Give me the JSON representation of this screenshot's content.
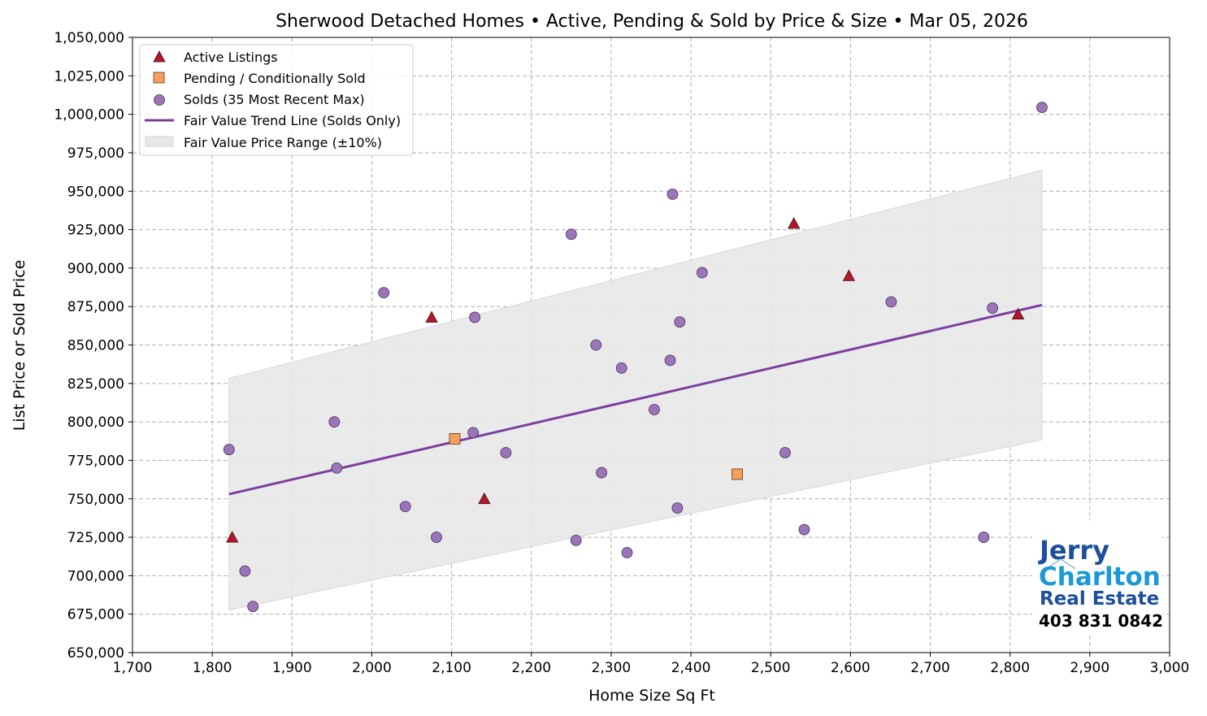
{
  "chart_data": {
    "type": "scatter",
    "title": "Sherwood Detached Homes • Active, Pending & Sold by Price & Size • Mar 05, 2026",
    "xlabel": "Home Size Sq Ft",
    "ylabel": "List Price or Sold Price",
    "xlim": [
      1700,
      3000
    ],
    "ylim": [
      650000,
      1050000
    ],
    "xticks": [
      1700,
      1800,
      1900,
      2000,
      2100,
      2200,
      2300,
      2400,
      2500,
      2600,
      2700,
      2800,
      2900,
      3000
    ],
    "yticks": [
      650000,
      675000,
      700000,
      725000,
      750000,
      775000,
      800000,
      825000,
      850000,
      875000,
      900000,
      925000,
      950000,
      975000,
      1000000,
      1025000,
      1050000
    ],
    "grid": true,
    "legend_placement": "top-left",
    "series": [
      {
        "name": "Active Listings",
        "marker": "triangle",
        "color": "#b2182b",
        "points": [
          [
            1825,
            725000
          ],
          [
            2075,
            868000
          ],
          [
            2141,
            750000
          ],
          [
            2529,
            929000
          ],
          [
            2598,
            895000
          ],
          [
            2810,
            870000
          ]
        ]
      },
      {
        "name": "Pending / Conditionally Sold",
        "marker": "square",
        "color": "#f4a05a",
        "points": [
          [
            2104,
            789000
          ],
          [
            2458,
            766000
          ]
        ]
      },
      {
        "name": "Solds (35 Most Recent Max)",
        "marker": "circle",
        "color": "#9a76b8",
        "points": [
          [
            1821,
            782000
          ],
          [
            1841,
            703000
          ],
          [
            1851,
            680000
          ],
          [
            1953,
            800000
          ],
          [
            1956,
            770000
          ],
          [
            2015,
            884000
          ],
          [
            2042,
            745000
          ],
          [
            2081,
            725000
          ],
          [
            2127,
            793000
          ],
          [
            2129,
            868000
          ],
          [
            2168,
            780000
          ],
          [
            2250,
            922000
          ],
          [
            2256,
            723000
          ],
          [
            2281,
            850000
          ],
          [
            2288,
            767000
          ],
          [
            2313,
            835000
          ],
          [
            2320,
            715000
          ],
          [
            2354,
            808000
          ],
          [
            2374,
            840000
          ],
          [
            2377,
            948000
          ],
          [
            2383,
            744000
          ],
          [
            2386,
            865000
          ],
          [
            2414,
            897000
          ],
          [
            2518,
            780000
          ],
          [
            2542,
            730000
          ],
          [
            2651,
            878000
          ],
          [
            2767,
            725000
          ],
          [
            2778,
            874000
          ],
          [
            2840,
            1004500
          ]
        ]
      },
      {
        "name": "Fair Value Trend Line (Solds Only)",
        "type": "line",
        "color": "#7b3f9e",
        "points": [
          [
            1821,
            753000
          ],
          [
            2840,
            876000
          ]
        ]
      },
      {
        "name": "Fair Value Price Range (±10%)",
        "type": "band",
        "color": "#e8e8e8",
        "lower": [
          [
            1821,
            677700
          ],
          [
            2840,
            788400
          ]
        ],
        "upper": [
          [
            1821,
            828300
          ],
          [
            2840,
            963600
          ]
        ]
      }
    ]
  },
  "logo": {
    "line1": "Jerry",
    "line2": "Charlton",
    "line3": "Real Estate",
    "phone": "403 831 0842",
    "colors": {
      "dark": "#1c4f9c",
      "light": "#1a9ad6"
    }
  }
}
